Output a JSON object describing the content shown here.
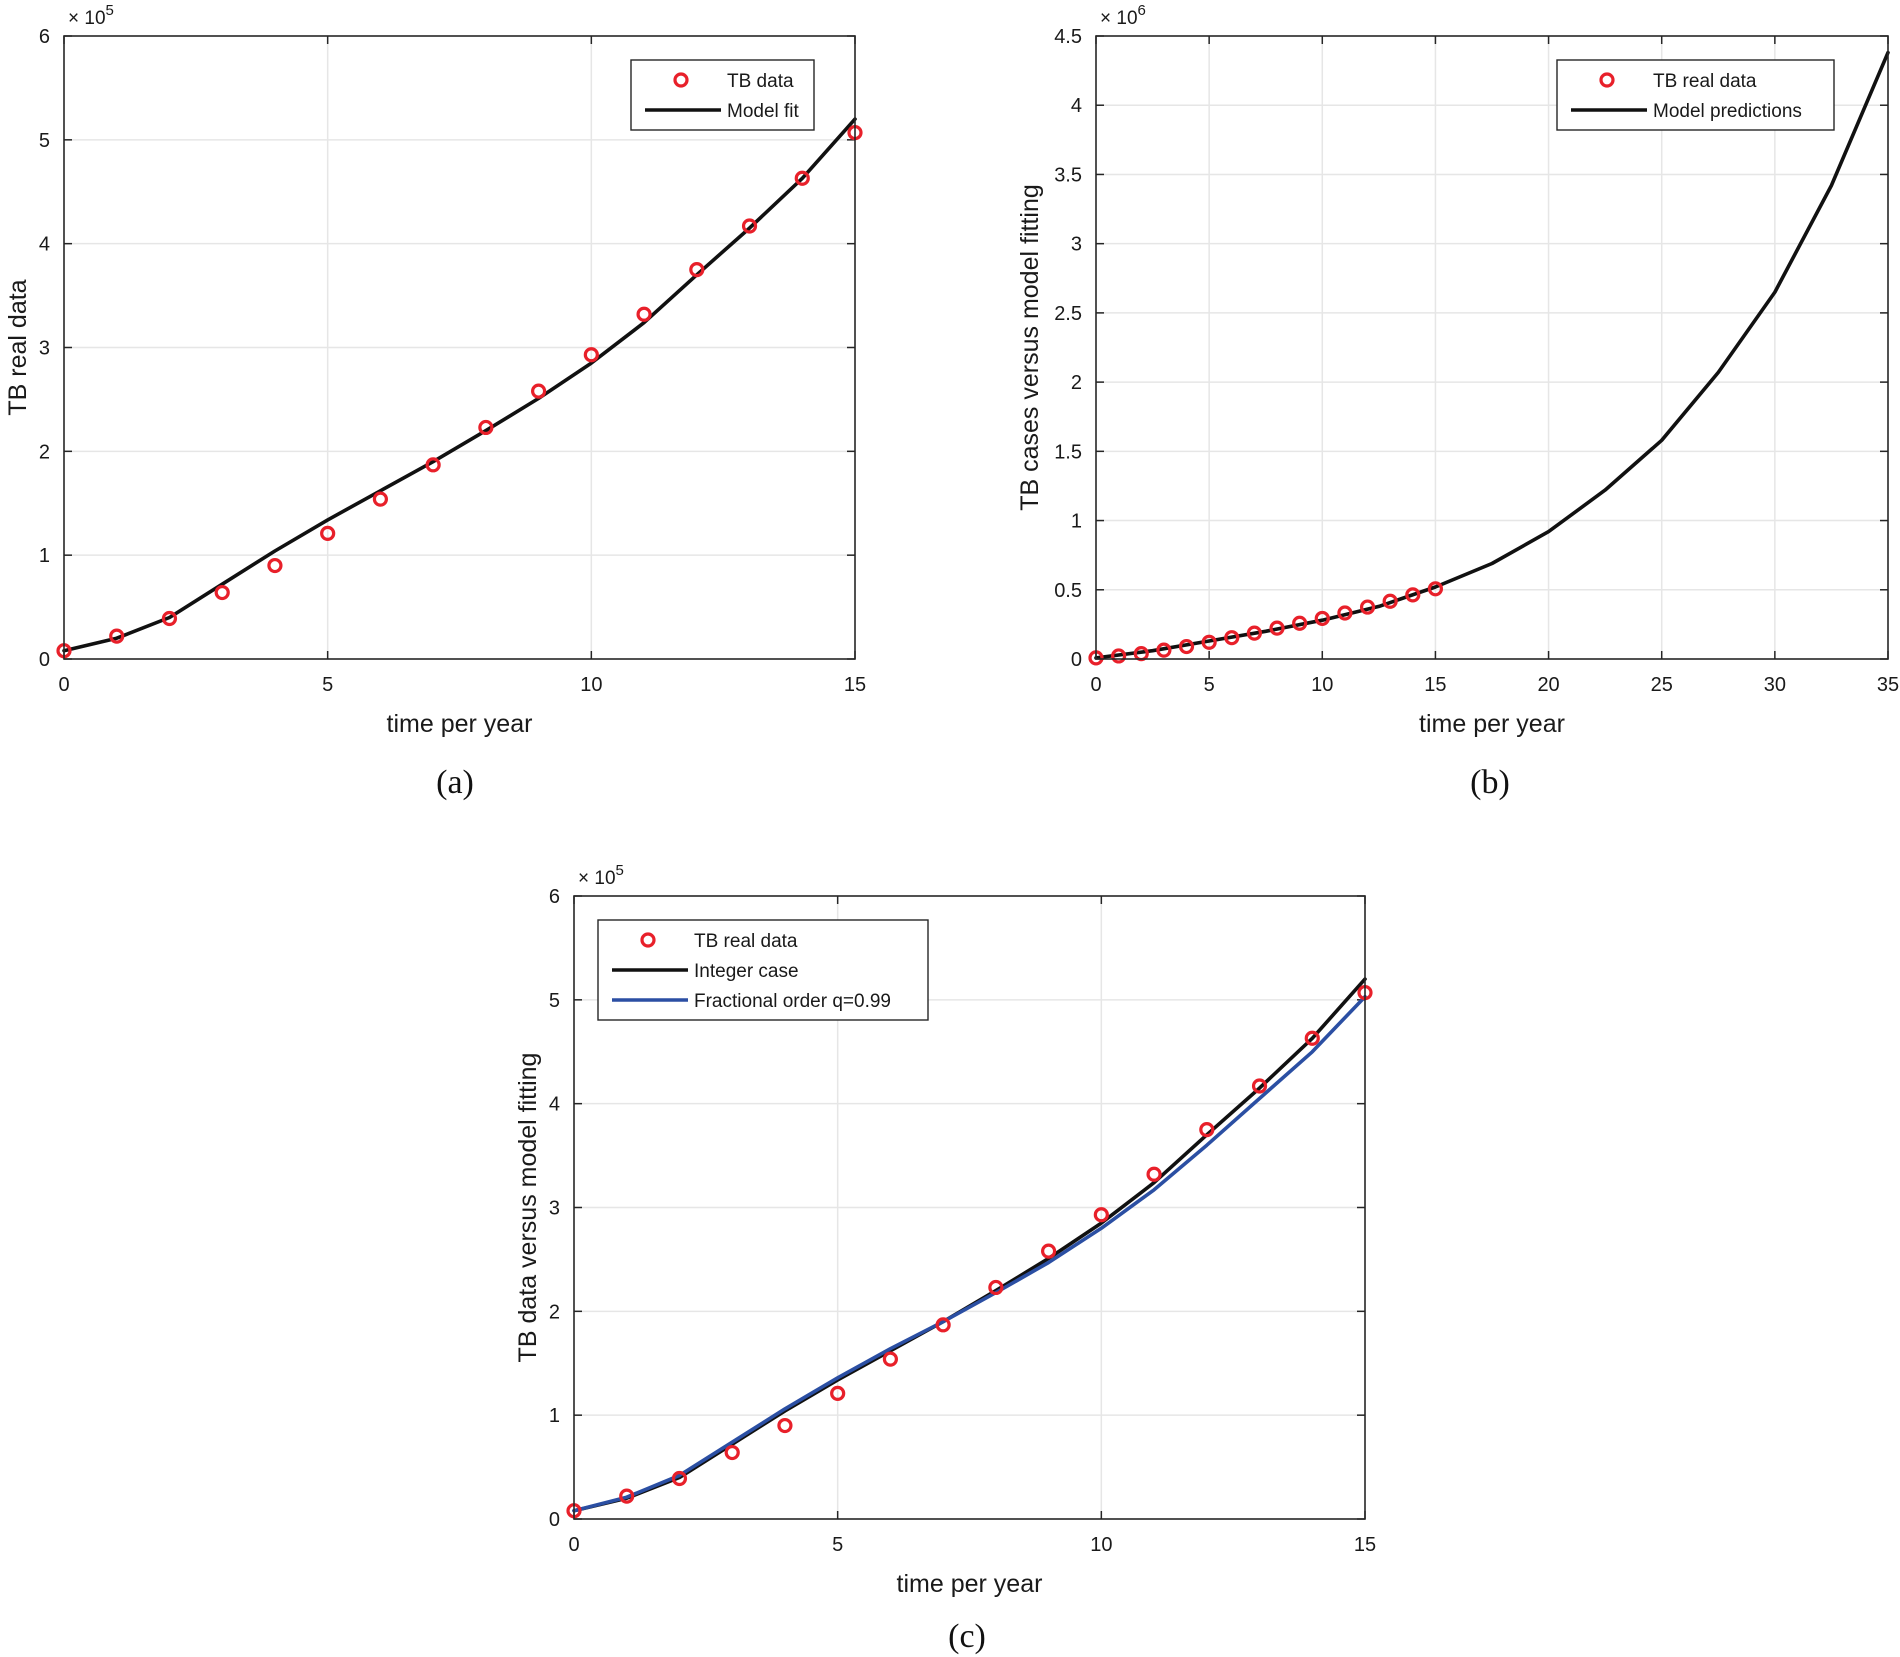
{
  "colors": {
    "data_marker": "#e8202a",
    "model_line": "#111111",
    "fractional_line": "#2b4fa3",
    "grid": "#e6e6e6",
    "axis": "#262626"
  },
  "chart_data": [
    {
      "id": "a",
      "panel_label": "(a)",
      "type": "scatter+line",
      "xlabel": "time per year",
      "ylabel": "TB real data",
      "xlim": [
        0,
        15
      ],
      "ylim": [
        0,
        6
      ],
      "xticks": [
        0,
        5,
        10,
        15
      ],
      "xtick_labels": [
        "0",
        "5",
        "10",
        "15"
      ],
      "yticks": [
        0,
        1,
        2,
        3,
        4,
        5,
        6
      ],
      "ytick_labels": [
        "0",
        "1",
        "2",
        "3",
        "4",
        "5",
        "6"
      ],
      "y_exponent_base": "× 10",
      "y_exponent_power": "5",
      "grid": true,
      "legend_position": "top-right",
      "series": [
        {
          "name": "TB data",
          "kind": "markers",
          "color": "#e8202a",
          "x": [
            0,
            1,
            2,
            3,
            4,
            5,
            6,
            7,
            8,
            9,
            10,
            11,
            12,
            13,
            14,
            15
          ],
          "y": [
            0.08,
            0.22,
            0.39,
            0.64,
            0.9,
            1.21,
            1.54,
            1.87,
            2.23,
            2.58,
            2.93,
            3.32,
            3.75,
            4.17,
            4.63,
            5.07
          ]
        },
        {
          "name": "Model fit",
          "kind": "line",
          "color": "#111111",
          "x": [
            0,
            1,
            2,
            3,
            4,
            5,
            6,
            7,
            8,
            9,
            10,
            11,
            12,
            13,
            14,
            15
          ],
          "y": [
            0.08,
            0.2,
            0.4,
            0.72,
            1.04,
            1.34,
            1.62,
            1.9,
            2.2,
            2.51,
            2.85,
            3.24,
            3.7,
            4.15,
            4.63,
            5.2
          ]
        }
      ]
    },
    {
      "id": "b",
      "panel_label": "(b)",
      "type": "scatter+line",
      "xlabel": "time per year",
      "ylabel": "TB cases versus model fitting",
      "xlim": [
        0,
        35
      ],
      "ylim": [
        0,
        4.5
      ],
      "xticks": [
        0,
        5,
        10,
        15,
        20,
        25,
        30,
        35
      ],
      "xtick_labels": [
        "0",
        "5",
        "10",
        "15",
        "20",
        "25",
        "30",
        "35"
      ],
      "yticks": [
        0,
        0.5,
        1,
        1.5,
        2,
        2.5,
        3,
        3.5,
        4,
        4.5
      ],
      "ytick_labels": [
        "0",
        "0.5",
        "1",
        "1.5",
        "2",
        "2.5",
        "3",
        "3.5",
        "4",
        "4.5"
      ],
      "y_exponent_base": "× 10",
      "y_exponent_power": "6",
      "grid": true,
      "legend_position": "top-right",
      "series": [
        {
          "name": "TB real data",
          "kind": "markers",
          "color": "#e8202a",
          "x": [
            0,
            1,
            2,
            3,
            4,
            5,
            6,
            7,
            8,
            9,
            10,
            11,
            12,
            13,
            14,
            15
          ],
          "y": [
            0.008,
            0.022,
            0.039,
            0.064,
            0.09,
            0.121,
            0.154,
            0.187,
            0.223,
            0.258,
            0.293,
            0.332,
            0.375,
            0.417,
            0.463,
            0.507
          ]
        },
        {
          "name": "Model predictions",
          "kind": "line",
          "color": "#111111",
          "x": [
            0,
            2.5,
            5,
            7.5,
            10,
            12.5,
            15,
            17.5,
            20,
            22.5,
            25,
            27.5,
            30,
            32.5,
            35
          ],
          "y": [
            0.008,
            0.06,
            0.13,
            0.2,
            0.28,
            0.38,
            0.52,
            0.69,
            0.92,
            1.22,
            1.58,
            2.07,
            2.65,
            3.42,
            4.38
          ]
        }
      ]
    },
    {
      "id": "c",
      "panel_label": "(c)",
      "type": "scatter+line",
      "xlabel": "time per year",
      "ylabel": "TB data versus model fitting",
      "xlim": [
        0,
        15
      ],
      "ylim": [
        0,
        6
      ],
      "xticks": [
        0,
        5,
        10,
        15
      ],
      "xtick_labels": [
        "0",
        "5",
        "10",
        "15"
      ],
      "yticks": [
        0,
        1,
        2,
        3,
        4,
        5,
        6
      ],
      "ytick_labels": [
        "0",
        "1",
        "2",
        "3",
        "4",
        "5",
        "6"
      ],
      "y_exponent_base": "× 10",
      "y_exponent_power": "5",
      "grid": true,
      "legend_position": "top-left",
      "series": [
        {
          "name": "TB real data",
          "kind": "markers",
          "color": "#e8202a",
          "x": [
            0,
            1,
            2,
            3,
            4,
            5,
            6,
            7,
            8,
            9,
            10,
            11,
            12,
            13,
            14,
            15
          ],
          "y": [
            0.08,
            0.22,
            0.39,
            0.64,
            0.9,
            1.21,
            1.54,
            1.87,
            2.23,
            2.58,
            2.93,
            3.32,
            3.75,
            4.17,
            4.63,
            5.07
          ]
        },
        {
          "name": "Integer case",
          "kind": "line",
          "color": "#111111",
          "x": [
            0,
            1,
            2,
            3,
            4,
            5,
            6,
            7,
            8,
            9,
            10,
            11,
            12,
            13,
            14,
            15
          ],
          "y": [
            0.08,
            0.2,
            0.4,
            0.72,
            1.04,
            1.34,
            1.62,
            1.9,
            2.2,
            2.51,
            2.85,
            3.24,
            3.7,
            4.15,
            4.63,
            5.2
          ]
        },
        {
          "name": "Fractional order q=0.99",
          "kind": "line",
          "color": "#2b4fa3",
          "x": [
            0,
            1,
            2,
            3,
            4,
            5,
            6,
            7,
            8,
            9,
            10,
            11,
            12,
            13,
            14,
            15
          ],
          "y": [
            0.08,
            0.21,
            0.42,
            0.74,
            1.06,
            1.36,
            1.64,
            1.9,
            2.18,
            2.47,
            2.8,
            3.17,
            3.6,
            4.05,
            4.5,
            5.03
          ]
        }
      ]
    }
  ]
}
